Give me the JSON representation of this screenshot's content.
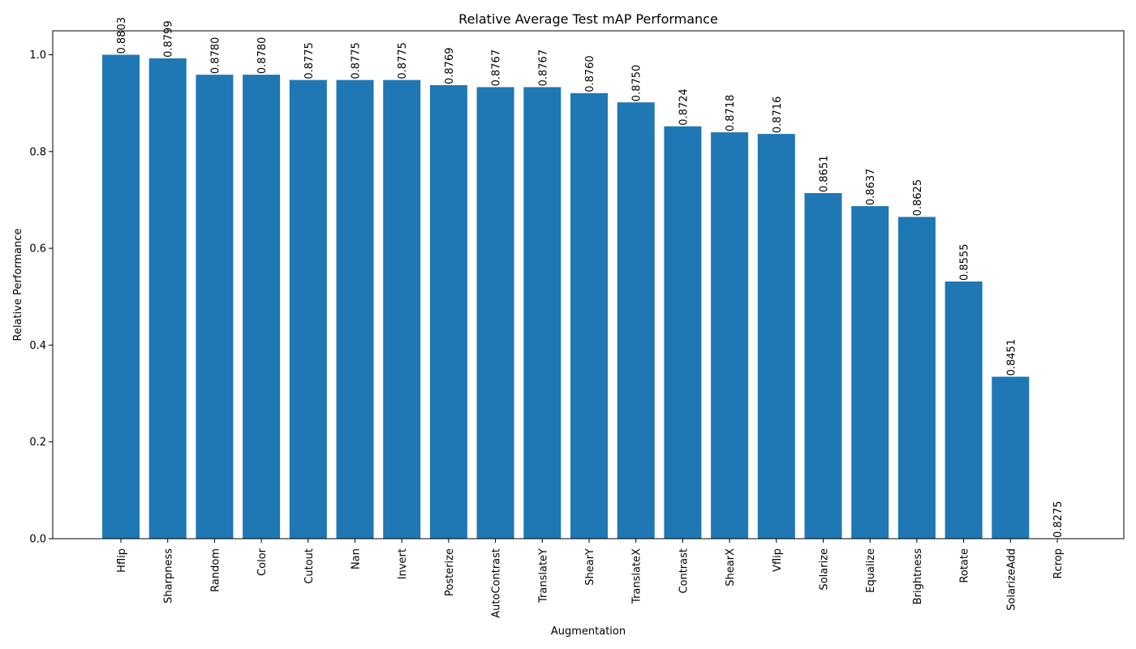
{
  "chart_data": {
    "type": "bar",
    "title": "Relative Average Test mAP Performance",
    "xlabel": "Augmentation",
    "ylabel": "Relative Performance",
    "ylim": [
      0,
      1.05
    ],
    "yticks": [
      "0.0",
      "0.2",
      "0.4",
      "0.6",
      "0.8",
      "1.0"
    ],
    "grid": false,
    "bar_color": "#1f77b4",
    "categories": [
      "Hflip",
      "Sharpness",
      "Random",
      "Color",
      "Cutout",
      "Nan",
      "Invert",
      "Posterize",
      "AutoContrast",
      "TranslateY",
      "ShearY",
      "TranslateX",
      "Contrast",
      "ShearX",
      "Vflip",
      "Solarize",
      "Equalize",
      "Brightness",
      "Rotate",
      "SolarizeAdd",
      "Rcrop"
    ],
    "values": [
      1.0,
      0.9926,
      0.9587,
      0.9587,
      0.9479,
      0.9479,
      0.9479,
      0.9372,
      0.9331,
      0.9331,
      0.9207,
      0.9016,
      0.8522,
      0.8397,
      0.8364,
      0.7141,
      0.6872,
      0.6649,
      0.5314,
      0.3347,
      0.0
    ],
    "labels": [
      "0.8803",
      "0.8799",
      "0.8780",
      "0.8780",
      "0.8775",
      "0.8775",
      "0.8775",
      "0.8769",
      "0.8767",
      "0.8767",
      "0.8760",
      "0.8750",
      "0.8724",
      "0.8718",
      "0.8716",
      "0.8651",
      "0.8637",
      "0.8625",
      "0.8555",
      "0.8451",
      "0.8275"
    ]
  }
}
